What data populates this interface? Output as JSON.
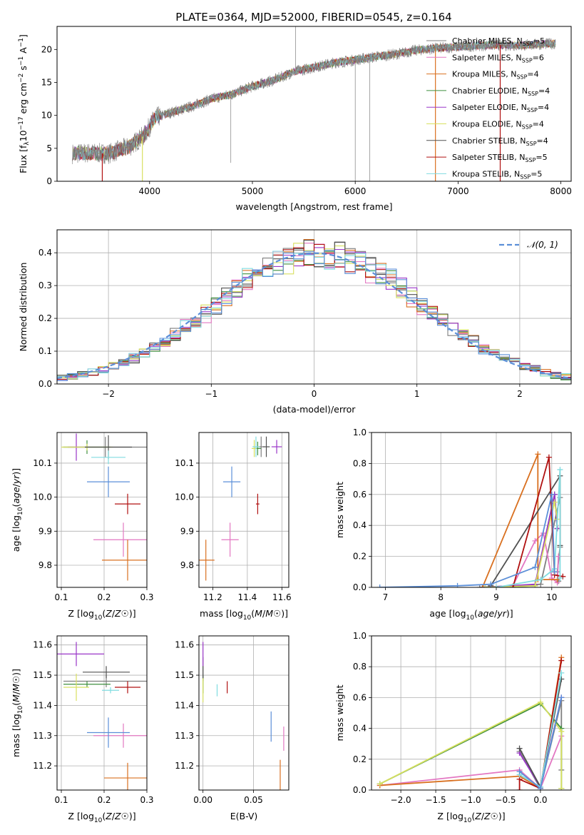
{
  "title": "PLATE=0364, MJD=52000, FIBERID=0545, z=0.164",
  "palette": [
    "#7f7f7f",
    "#e377c2",
    "#d97020",
    "#3f8f3f",
    "#9a36c8",
    "#d8e060",
    "#505050",
    "#b01010",
    "#80dce0",
    "#5b8fd8"
  ],
  "chart_data": [
    {
      "id": "spectrum",
      "type": "line",
      "title": "PLATE=0364, MJD=52000, FIBERID=0545, z=0.164",
      "xlabel": "wavelength [Angstrom, rest frame]",
      "ylabel_parts": [
        "Flux [f",
        "λ",
        "10",
        "−17",
        " erg cm",
        "−2",
        " s",
        "−1",
        " A",
        "−1",
        "]"
      ],
      "xlim": [
        3100,
        8100
      ],
      "ylim": [
        0,
        23.5
      ],
      "xticks": [
        4000,
        5000,
        6000,
        7000,
        8000
      ],
      "yticks": [
        0,
        5,
        10,
        15,
        20
      ],
      "grid": false,
      "legend_position": "top-right",
      "series": [
        {
          "name": "Chabrier MILES, N",
          "sub": "SSP",
          "tail": "=5",
          "color": "#7f7f7f"
        },
        {
          "name": "Salpeter MILES, N",
          "sub": "SSP",
          "tail": "=6",
          "color": "#e377c2"
        },
        {
          "name": "Kroupa MILES, N",
          "sub": "SSP",
          "tail": "=4",
          "color": "#d97020"
        },
        {
          "name": "Chabrier ELODIE, N",
          "sub": "SSP",
          "tail": "=4",
          "color": "#3f8f3f"
        },
        {
          "name": "Salpeter ELODIE, N",
          "sub": "SSP",
          "tail": "=4",
          "color": "#9a36c8"
        },
        {
          "name": "Kroupa ELODIE, N",
          "sub": "SSP",
          "tail": "=4",
          "color": "#d8e060"
        },
        {
          "name": "Chabrier STELIB, N",
          "sub": "SSP",
          "tail": "=4",
          "color": "#505050"
        },
        {
          "name": "Salpeter STELIB, N",
          "sub": "SSP",
          "tail": "=5",
          "color": "#b01010"
        },
        {
          "name": "Kroupa STELIB, N",
          "sub": "SSP",
          "tail": "=5",
          "color": "#80dce0"
        }
      ],
      "continuum": [
        [
          3250,
          4.2
        ],
        [
          3400,
          4.3
        ],
        [
          3600,
          4.2
        ],
        [
          3800,
          5.2
        ],
        [
          3950,
          7.0
        ],
        [
          4050,
          9.6
        ],
        [
          4200,
          10.4
        ],
        [
          4400,
          11.3
        ],
        [
          4600,
          12.5
        ],
        [
          4800,
          13.2
        ],
        [
          5000,
          14.4
        ],
        [
          5200,
          15.3
        ],
        [
          5400,
          16.6
        ],
        [
          5600,
          17.3
        ],
        [
          5800,
          18.0
        ],
        [
          6000,
          18.4
        ],
        [
          6200,
          18.9
        ],
        [
          6400,
          19.3
        ],
        [
          6600,
          19.9
        ],
        [
          6800,
          20.2
        ],
        [
          7000,
          20.4
        ],
        [
          7200,
          20.6
        ],
        [
          7400,
          20.7
        ],
        [
          7600,
          20.6
        ],
        [
          7800,
          20.8
        ],
        [
          7950,
          20.9
        ]
      ]
    },
    {
      "id": "residuals",
      "type": "bar",
      "xlabel": "(data-model)/error",
      "ylabel": "Normed distribution",
      "xlim": [
        -2.5,
        2.5
      ],
      "ylim": [
        0,
        0.47
      ],
      "xticks": [
        -2,
        -1,
        0,
        1,
        2
      ],
      "yticks": [
        0.0,
        0.1,
        0.2,
        0.3,
        0.4
      ],
      "grid": true,
      "legend": "𝒩(0, 1)",
      "legend_position": "top-right"
    },
    {
      "id": "age_vs_Z",
      "type": "scatter",
      "xlabel": "Z [log10(Z/Z☉)]",
      "ylabel": "age [log10(age/yr)]",
      "xlim": [
        0.09,
        0.3
      ],
      "ylim": [
        9.735,
        10.19
      ],
      "xticks": [
        0.1,
        0.2,
        0.3
      ],
      "yticks": [
        9.8,
        9.9,
        10.0,
        10.1
      ],
      "grid": true,
      "points": [
        {
          "x": 0.203,
          "y": 10.147,
          "xerr": 0.1,
          "yerr": 0.03,
          "color": "#7f7f7f"
        },
        {
          "x": 0.245,
          "y": 9.875,
          "xerr": 0.07,
          "yerr": 0.05,
          "color": "#e377c2"
        },
        {
          "x": 0.255,
          "y": 9.815,
          "xerr": 0.06,
          "yerr": 0.06,
          "color": "#d97020"
        },
        {
          "x": 0.16,
          "y": 10.147,
          "xerr": 0.055,
          "yerr": 0.02,
          "color": "#3f8f3f"
        },
        {
          "x": 0.135,
          "y": 10.147,
          "xerr": 0.02,
          "yerr": 0.04,
          "color": "#9a36c8"
        },
        {
          "x": 0.16,
          "y": 10.147,
          "xerr": 0.06,
          "yerr": 0.01,
          "color": "#d8e060"
        },
        {
          "x": 0.21,
          "y": 10.147,
          "xerr": 0.055,
          "yerr": 0.035,
          "color": "#505050"
        },
        {
          "x": 0.255,
          "y": 9.98,
          "xerr": 0.03,
          "yerr": 0.03,
          "color": "#b01010"
        },
        {
          "x": 0.21,
          "y": 10.117,
          "xerr": 0.04,
          "yerr": 0.02,
          "color": "#80dce0"
        },
        {
          "x": 0.21,
          "y": 10.045,
          "xerr": 0.05,
          "yerr": 0.045,
          "color": "#5b8fd8"
        }
      ]
    },
    {
      "id": "age_vs_mass",
      "type": "scatter",
      "xlabel": "mass [log10(M/M☉)]",
      "xlim": [
        11.12,
        11.64
      ],
      "ylim": [
        9.735,
        10.19
      ],
      "xticks": [
        11.2,
        11.4,
        11.6
      ],
      "yticks": [
        9.8,
        9.9,
        10.0,
        10.1
      ],
      "grid": true,
      "points": [
        {
          "x": 11.48,
          "y": 10.148,
          "xerr": 0.02,
          "yerr": 0.03,
          "color": "#7f7f7f"
        },
        {
          "x": 11.3,
          "y": 9.875,
          "xerr": 0.05,
          "yerr": 0.05,
          "color": "#e377c2"
        },
        {
          "x": 11.16,
          "y": 9.815,
          "xerr": 0.05,
          "yerr": 0.06,
          "color": "#d97020"
        },
        {
          "x": 11.46,
          "y": 10.143,
          "xerr": 0.02,
          "yerr": 0.02,
          "color": "#3f8f3f"
        },
        {
          "x": 11.57,
          "y": 10.148,
          "xerr": 0.03,
          "yerr": 0.02,
          "color": "#9a36c8"
        },
        {
          "x": 11.44,
          "y": 10.143,
          "xerr": 0.015,
          "yerr": 0.025,
          "color": "#d8e060"
        },
        {
          "x": 11.51,
          "y": 10.148,
          "xerr": 0.02,
          "yerr": 0.03,
          "color": "#505050"
        },
        {
          "x": 11.46,
          "y": 9.98,
          "xerr": 0.01,
          "yerr": 0.03,
          "color": "#b01010"
        },
        {
          "x": 11.45,
          "y": 10.148,
          "xerr": 0.02,
          "yerr": 0.03,
          "color": "#80dce0"
        },
        {
          "x": 11.31,
          "y": 10.045,
          "xerr": 0.05,
          "yerr": 0.045,
          "color": "#5b8fd8"
        }
      ]
    },
    {
      "id": "mass_weight_vs_age",
      "type": "line",
      "xlabel": "age [log10(age/yr)]",
      "ylabel": "mass weight",
      "xlim": [
        6.75,
        10.35
      ],
      "ylim": [
        0,
        1.0
      ],
      "xticks": [
        7,
        8,
        9,
        10
      ],
      "yticks": [
        0.0,
        0.2,
        0.4,
        0.6,
        0.8,
        1.0
      ],
      "grid": true,
      "series": [
        {
          "color": "#7f7f7f",
          "points": [
            [
              8.7,
              0
            ],
            [
              9.8,
              0.02
            ],
            [
              10.15,
              0.58
            ],
            [
              10.15,
              0.26
            ],
            [
              10.1,
              0.1
            ],
            [
              10.12,
              0.04
            ]
          ]
        },
        {
          "color": "#e377c2",
          "points": [
            [
              9.3,
              0.01
            ],
            [
              9.7,
              0.3
            ],
            [
              9.85,
              0.35
            ],
            [
              10.0,
              0.06
            ],
            [
              10.1,
              0.03
            ],
            [
              10.12,
              0.2
            ]
          ]
        },
        {
          "color": "#d97020",
          "points": [
            [
              8.75,
              0
            ],
            [
              9.75,
              0.86
            ],
            [
              9.75,
              0.05
            ],
            [
              10.1,
              0.05
            ]
          ]
        },
        {
          "color": "#3f8f3f",
          "points": [
            [
              8.8,
              0
            ],
            [
              9.7,
              0.01
            ],
            [
              10.05,
              0.6
            ],
            [
              10.1,
              0.38
            ]
          ]
        },
        {
          "color": "#9a36c8",
          "points": [
            [
              8.8,
              0
            ],
            [
              9.7,
              0.02
            ],
            [
              10.05,
              0.6
            ],
            [
              10.1,
              0.38
            ]
          ]
        },
        {
          "color": "#d8e060",
          "points": [
            [
              8.8,
              0
            ],
            [
              9.7,
              0.01
            ],
            [
              10.05,
              0.55
            ],
            [
              10.1,
              0.44
            ]
          ]
        },
        {
          "color": "#505050",
          "points": [
            [
              8.9,
              0.01
            ],
            [
              10.15,
              0.72
            ],
            [
              10.15,
              0.27
            ]
          ]
        },
        {
          "color": "#b01010",
          "points": [
            [
              9.3,
              0
            ],
            [
              9.95,
              0.84
            ],
            [
              10.05,
              0.08
            ],
            [
              10.2,
              0.07
            ]
          ]
        },
        {
          "color": "#80dce0",
          "points": [
            [
              9.0,
              0
            ],
            [
              9.8,
              0.05
            ],
            [
              10.05,
              0.12
            ],
            [
              10.15,
              0.76
            ],
            [
              10.15,
              0.06
            ]
          ]
        },
        {
          "color": "#5b8fd8",
          "points": [
            [
              6.9,
              0
            ],
            [
              8.3,
              0.01
            ],
            [
              8.9,
              0.02
            ],
            [
              9.7,
              0.13
            ],
            [
              10.0,
              0.6
            ],
            [
              10.05,
              0.1
            ]
          ]
        }
      ]
    },
    {
      "id": "mass_vs_Z",
      "type": "scatter",
      "xlabel": "Z [log10(Z/Z☉)]",
      "ylabel": "mass [log10(M/M☉)]",
      "xlim": [
        0.09,
        0.3
      ],
      "ylim": [
        11.12,
        11.63
      ],
      "xticks": [
        0.1,
        0.2,
        0.3
      ],
      "yticks": [
        11.2,
        11.3,
        11.4,
        11.5,
        11.6
      ],
      "grid": true,
      "points": [
        {
          "x": 0.205,
          "y": 11.48,
          "xerr": 0.1,
          "yerr": 0.02,
          "color": "#7f7f7f"
        },
        {
          "x": 0.245,
          "y": 11.3,
          "xerr": 0.07,
          "yerr": 0.04,
          "color": "#e377c2"
        },
        {
          "x": 0.255,
          "y": 11.16,
          "xerr": 0.055,
          "yerr": 0.05,
          "color": "#d97020"
        },
        {
          "x": 0.16,
          "y": 11.47,
          "xerr": 0.055,
          "yerr": 0.01,
          "color": "#3f8f3f"
        },
        {
          "x": 0.135,
          "y": 11.57,
          "xerr": 0.065,
          "yerr": 0.04,
          "color": "#9a36c8"
        },
        {
          "x": 0.135,
          "y": 11.46,
          "xerr": 0.03,
          "yerr": 0.045,
          "color": "#d8e060"
        },
        {
          "x": 0.205,
          "y": 11.51,
          "xerr": 0.055,
          "yerr": 0.02,
          "color": "#505050"
        },
        {
          "x": 0.255,
          "y": 11.46,
          "xerr": 0.03,
          "yerr": 0.02,
          "color": "#b01010"
        },
        {
          "x": 0.215,
          "y": 11.45,
          "xerr": 0.02,
          "yerr": 0.01,
          "color": "#80dce0"
        },
        {
          "x": 0.21,
          "y": 11.31,
          "xerr": 0.05,
          "yerr": 0.05,
          "color": "#5b8fd8"
        }
      ]
    },
    {
      "id": "mass_vs_ebv",
      "type": "scatter",
      "xlabel": "E(B-V)",
      "xlim": [
        -0.004,
        0.085
      ],
      "ylim": [
        11.12,
        11.63
      ],
      "xticks": [
        0.0,
        0.05
      ],
      "xtick_labels": [
        "0.00",
        "0.05"
      ],
      "yticks": [
        11.2,
        11.3,
        11.4,
        11.5,
        11.6
      ],
      "grid": true,
      "points": [
        {
          "x": 0.0,
          "y": 11.52,
          "yerr": 0.04,
          "color": "#7f7f7f"
        },
        {
          "x": 0.08,
          "y": 11.29,
          "yerr": 0.04,
          "color": "#e377c2"
        },
        {
          "x": 0.0765,
          "y": 11.17,
          "yerr": 0.05,
          "color": "#d97020"
        },
        {
          "x": 0.0,
          "y": 11.47,
          "yerr": 0.03,
          "color": "#3f8f3f"
        },
        {
          "x": 0.0,
          "y": 11.57,
          "yerr": 0.04,
          "color": "#9a36c8"
        },
        {
          "x": 0.0,
          "y": 11.45,
          "yerr": 0.04,
          "color": "#d8e060"
        },
        {
          "x": 0.0,
          "y": 11.51,
          "yerr": 0.02,
          "color": "#505050"
        },
        {
          "x": 0.024,
          "y": 11.46,
          "yerr": 0.02,
          "color": "#b01010"
        },
        {
          "x": 0.014,
          "y": 11.45,
          "yerr": 0.02,
          "color": "#80dce0"
        },
        {
          "x": 0.0675,
          "y": 11.33,
          "yerr": 0.05,
          "color": "#5b8fd8"
        }
      ]
    },
    {
      "id": "mass_weight_vs_Z",
      "type": "line",
      "xlabel": "Z [log10(Z/Z☉)]",
      "ylabel": "mass weight",
      "xlim": [
        -2.42,
        0.44
      ],
      "ylim": [
        0,
        1.0
      ],
      "xticks": [
        -2.0,
        -1.5,
        -1.0,
        -0.5,
        0.0
      ],
      "yticks": [
        0.0,
        0.2,
        0.4,
        0.6,
        0.8,
        1.0
      ],
      "grid": true,
      "series": [
        {
          "color": "#7f7f7f",
          "points": [
            [
              -0.3,
              0.25
            ],
            [
              0.0,
              0.01
            ],
            [
              0.3,
              0.58
            ],
            [
              0.3,
              0.13
            ]
          ]
        },
        {
          "color": "#e377c2",
          "points": [
            [
              -2.3,
              0.03
            ],
            [
              -0.3,
              0.13
            ],
            [
              0.0,
              0.01
            ],
            [
              0.3,
              0.35
            ]
          ]
        },
        {
          "color": "#d97020",
          "points": [
            [
              -2.3,
              0.03
            ],
            [
              -0.3,
              0.09
            ],
            [
              0.0,
              0.01
            ],
            [
              0.3,
              0.86
            ]
          ]
        },
        {
          "color": "#3f8f3f",
          "points": [
            [
              -2.3,
              0.04
            ],
            [
              0.0,
              0.56
            ],
            [
              0.3,
              0.4
            ],
            [
              0.3,
              0.01
            ]
          ]
        },
        {
          "color": "#9a36c8",
          "points": [
            [
              -0.3,
              0.24
            ],
            [
              0.0,
              0.02
            ],
            [
              0.3,
              0.6
            ]
          ]
        },
        {
          "color": "#d8e060",
          "points": [
            [
              -2.3,
              0.04
            ],
            [
              0.0,
              0.57
            ],
            [
              0.3,
              0.38
            ],
            [
              0.3,
              0.01
            ]
          ]
        },
        {
          "color": "#505050",
          "points": [
            [
              -0.3,
              0.27
            ],
            [
              0.0,
              0.02
            ],
            [
              0.3,
              0.72
            ]
          ]
        },
        {
          "color": "#b01010",
          "points": [
            [
              -0.3,
              0.0
            ],
            [
              -0.3,
              0.07
            ],
            [
              0.0,
              0.01
            ],
            [
              0.3,
              0.84
            ]
          ]
        },
        {
          "color": "#80dce0",
          "points": [
            [
              -0.3,
              0.1
            ],
            [
              0.0,
              0.02
            ],
            [
              0.3,
              0.76
            ]
          ]
        },
        {
          "color": "#5b8fd8",
          "points": [
            [
              -0.3,
              0.12
            ],
            [
              0.0,
              0.01
            ],
            [
              0.3,
              0.6
            ]
          ]
        }
      ]
    }
  ]
}
